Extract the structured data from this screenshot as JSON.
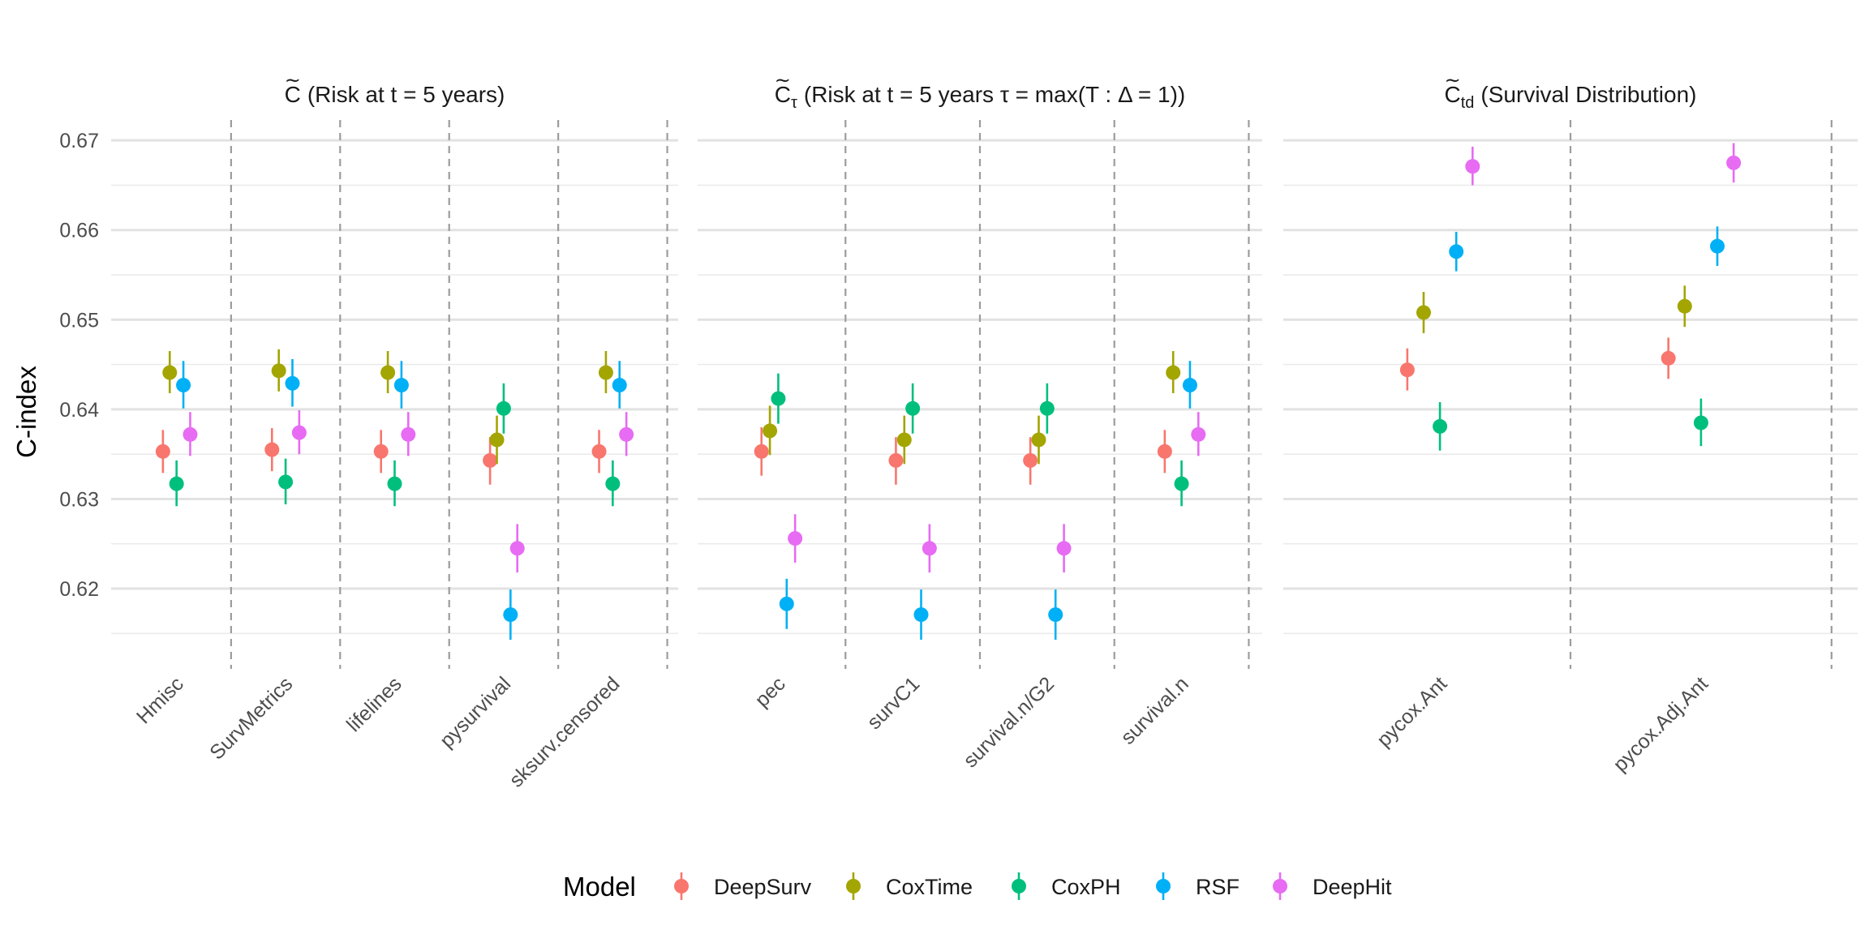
{
  "chart_data": {
    "type": "scatter",
    "ylabel": "C-index",
    "xlabel": "",
    "ylim": [
      0.6115,
      0.673
    ],
    "y_ticks": [
      "0.62",
      "0.63",
      "0.64",
      "0.65",
      "0.66",
      "0.67"
    ],
    "grid": true,
    "legend": {
      "title": "Model",
      "position": "bottom"
    },
    "series_colors": {
      "DeepSurv": "#F8766D",
      "CoxTime": "#A3A500",
      "CoxPH": "#00BF7D",
      "RSF": "#00B0F6",
      "DeepHit": "#E76BF3"
    },
    "models": [
      "DeepSurv",
      "CoxTime",
      "CoxPH",
      "RSF",
      "DeepHit"
    ],
    "panels": [
      {
        "title_main": "C",
        "title_sub": "",
        "title_rest": "Risk at t = 5 years",
        "categories": [
          "Hmisc",
          "SurvMetrics",
          "lifelines",
          "pysurvival",
          "sksurv.censored"
        ],
        "series": [
          {
            "name": "DeepSurv",
            "values": [
              0.6353,
              0.6355,
              0.6353,
              0.6343,
              0.6353
            ],
            "lower": [
              0.6329,
              0.6331,
              0.6329,
              0.6316,
              0.6329
            ],
            "upper": [
              0.6377,
              0.6379,
              0.6377,
              0.6369,
              0.6377
            ]
          },
          {
            "name": "CoxTime",
            "values": [
              0.6441,
              0.6443,
              0.6441,
              0.6366,
              0.6441
            ],
            "lower": [
              0.6418,
              0.642,
              0.6418,
              0.6339,
              0.6418
            ],
            "upper": [
              0.6465,
              0.6467,
              0.6465,
              0.6393,
              0.6465
            ]
          },
          {
            "name": "CoxPH",
            "values": [
              0.6317,
              0.6319,
              0.6317,
              0.6401,
              0.6317
            ],
            "lower": [
              0.6292,
              0.6294,
              0.6292,
              0.6373,
              0.6292
            ],
            "upper": [
              0.6343,
              0.6345,
              0.6343,
              0.6429,
              0.6343
            ]
          },
          {
            "name": "RSF",
            "values": [
              0.6427,
              0.6429,
              0.6427,
              0.6171,
              0.6427
            ],
            "lower": [
              0.6401,
              0.6403,
              0.6401,
              0.6143,
              0.6401
            ],
            "upper": [
              0.6454,
              0.6456,
              0.6454,
              0.6199,
              0.6454
            ]
          },
          {
            "name": "DeepHit",
            "values": [
              0.6372,
              0.6374,
              0.6372,
              0.6245,
              0.6372
            ],
            "lower": [
              0.6348,
              0.635,
              0.6348,
              0.6218,
              0.6348
            ],
            "upper": [
              0.6397,
              0.6399,
              0.6397,
              0.6272,
              0.6397
            ]
          }
        ]
      },
      {
        "title_main": "C",
        "title_sub": "τ",
        "title_rest": "Risk at t = 5 years τ = max(T :  Δ = 1)",
        "categories": [
          "pec",
          "survC1",
          "survival.n/G2",
          "survival.n"
        ],
        "series": [
          {
            "name": "DeepSurv",
            "values": [
              0.6353,
              0.6343,
              0.6343,
              0.6353
            ],
            "lower": [
              0.6326,
              0.6316,
              0.6316,
              0.6329
            ],
            "upper": [
              0.638,
              0.6369,
              0.6369,
              0.6377
            ]
          },
          {
            "name": "CoxTime",
            "values": [
              0.6376,
              0.6366,
              0.6366,
              0.6441
            ],
            "lower": [
              0.6349,
              0.6339,
              0.6339,
              0.6418
            ],
            "upper": [
              0.6404,
              0.6393,
              0.6393,
              0.6465
            ]
          },
          {
            "name": "CoxPH",
            "values": [
              0.6412,
              0.6401,
              0.6401,
              0.6317
            ],
            "lower": [
              0.6384,
              0.6373,
              0.6373,
              0.6292
            ],
            "upper": [
              0.644,
              0.6429,
              0.6429,
              0.6343
            ]
          },
          {
            "name": "RSF",
            "values": [
              0.6183,
              0.6171,
              0.6171,
              0.6427
            ],
            "lower": [
              0.6155,
              0.6143,
              0.6143,
              0.6401
            ],
            "upper": [
              0.6211,
              0.6199,
              0.6199,
              0.6454
            ]
          },
          {
            "name": "DeepHit",
            "values": [
              0.6256,
              0.6245,
              0.6245,
              0.6372
            ],
            "lower": [
              0.6229,
              0.6218,
              0.6218,
              0.6348
            ],
            "upper": [
              0.6283,
              0.6272,
              0.6272,
              0.6397
            ]
          }
        ]
      },
      {
        "title_main": "C",
        "title_sub": "td",
        "title_rest": "Survival Distribution",
        "categories": [
          "pycox.Ant",
          "pycox.Adj.Ant"
        ],
        "series": [
          {
            "name": "DeepSurv",
            "values": [
              0.6444,
              0.6457
            ],
            "lower": [
              0.6421,
              0.6434
            ],
            "upper": [
              0.6468,
              0.648
            ]
          },
          {
            "name": "CoxTime",
            "values": [
              0.6508,
              0.6515
            ],
            "lower": [
              0.6485,
              0.6492
            ],
            "upper": [
              0.6531,
              0.6538
            ]
          },
          {
            "name": "CoxPH",
            "values": [
              0.6381,
              0.6385
            ],
            "lower": [
              0.6354,
              0.6359
            ],
            "upper": [
              0.6408,
              0.6412
            ]
          },
          {
            "name": "RSF",
            "values": [
              0.6576,
              0.6582
            ],
            "lower": [
              0.6554,
              0.656
            ],
            "upper": [
              0.6598,
              0.6604
            ]
          },
          {
            "name": "DeepHit",
            "values": [
              0.6671,
              0.6675
            ],
            "lower": [
              0.665,
              0.6653
            ],
            "upper": [
              0.6693,
              0.6697
            ]
          }
        ]
      }
    ]
  }
}
